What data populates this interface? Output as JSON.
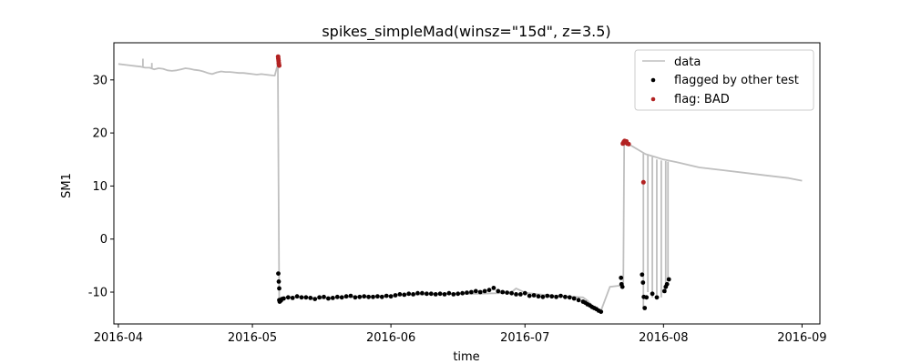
{
  "chart_data": {
    "type": "line",
    "title": "spikes_simpleMad(winsz=\"15d\", z=3.5)",
    "xlabel": "time",
    "ylabel": "SM1",
    "x_ticks": [
      "2016-04",
      "2016-05",
      "2016-06",
      "2016-07",
      "2016-08",
      "2016-09"
    ],
    "x_tick_days": [
      0,
      30,
      61,
      91,
      122,
      153
    ],
    "xlim_days": [
      -1,
      157
    ],
    "x_origin": "2016-04-01",
    "y_ticks": [
      -10,
      0,
      10,
      20,
      30
    ],
    "ylim": [
      -16,
      37
    ],
    "grid": false,
    "legend_position": "top-right",
    "legend": {
      "data": "data",
      "other": "flagged by other test",
      "bad": "flag: BAD"
    },
    "colors": {
      "data": "#bfbfbf",
      "other": "#000000",
      "bad": "#b22222"
    },
    "series": [
      {
        "name": "data",
        "type": "line",
        "x_days": [
          0,
          2,
          4,
          5,
          6,
          7,
          8,
          9,
          10,
          11,
          12,
          13,
          14,
          15,
          16,
          17,
          18,
          19,
          20,
          21,
          22,
          23,
          24,
          25,
          26,
          27,
          28,
          29,
          30,
          31,
          32,
          33,
          34,
          35,
          35.7,
          36,
          36.3,
          38,
          40,
          45,
          50,
          55,
          60,
          62,
          65,
          70,
          75,
          80,
          85,
          88,
          89,
          91,
          95,
          100,
          104,
          105,
          106,
          107,
          108,
          110,
          112,
          113,
          113.2,
          115,
          117,
          118,
          120,
          122,
          125,
          130,
          135,
          140,
          145,
          150,
          153
        ],
        "values": [
          33,
          32.8,
          32.6,
          32.5,
          32.3,
          32.3,
          32.0,
          32.2,
          32.1,
          31.8,
          31.7,
          31.8,
          32.0,
          32.2,
          32.1,
          31.9,
          31.8,
          31.6,
          31.3,
          31.1,
          31.4,
          31.6,
          31.5,
          31.5,
          31.4,
          31.3,
          31.3,
          31.2,
          31.1,
          31.0,
          31.1,
          31.0,
          30.9,
          30.8,
          33,
          -11.5,
          -11.2,
          -11.0,
          -10.9,
          -11.2,
          -11.0,
          -10.8,
          -10.7,
          -10.6,
          -10.5,
          -10.4,
          -10.3,
          -10.3,
          -10.2,
          -10.0,
          -9.3,
          -10.1,
          -10.5,
          -10.8,
          -11.0,
          -11.6,
          -12.5,
          -13.0,
          -13.5,
          -9.0,
          -8.8,
          -8.5,
          18.5,
          17.5,
          16.5,
          16.0,
          15.5,
          15.0,
          14.5,
          13.5,
          13.0,
          12.5,
          12.0,
          11.5,
          11.0
        ]
      },
      {
        "name": "data-small-spikes",
        "type": "spikes",
        "x_days": [
          5.5,
          7.5
        ],
        "from": [
          32.4,
          32.2
        ],
        "to": [
          34.0,
          33.2
        ]
      },
      {
        "name": "data-drop-spikes",
        "type": "spikes",
        "x_days": [
          117.5,
          118.5,
          119.5,
          120.5,
          121.5,
          122.5,
          123.0
        ],
        "from": [
          16.2,
          15.8,
          15.5,
          15.0,
          14.8,
          14.7,
          14.6
        ],
        "to": [
          -13.0,
          -10.0,
          -11.0,
          -10.5,
          -11.0,
          -10.2,
          -7.8
        ]
      },
      {
        "name": "flagged by other test",
        "type": "scatter",
        "x_days": [
          35.8,
          35.9,
          36.0,
          36.0,
          36.1,
          36.2,
          36.4,
          36.6,
          37,
          38,
          39,
          40,
          41,
          42,
          43,
          44,
          45,
          46,
          47,
          48,
          49,
          50,
          51,
          52,
          53,
          54,
          55,
          56,
          57,
          58,
          59,
          60,
          61,
          62,
          63,
          64,
          65,
          66,
          67,
          68,
          69,
          70,
          71,
          72,
          73,
          74,
          75,
          76,
          77,
          78,
          79,
          80,
          81,
          82,
          83,
          84,
          85,
          86,
          87,
          88,
          89,
          90,
          91,
          92,
          93,
          94,
          95,
          96,
          97,
          98,
          99,
          100,
          101,
          102,
          103,
          104,
          104.5,
          105,
          105.5,
          106,
          106.5,
          107,
          107.5,
          108,
          112.5,
          112.6,
          112.8,
          117.2,
          117.4,
          117.6,
          117.8,
          118.2,
          119.5,
          120.5,
          122.2,
          122.5,
          122.8,
          123.2
        ],
        "values": [
          -6.5,
          -8.0,
          -9.3,
          -11.5,
          -11.8,
          -11.5,
          -11.6,
          -11.3,
          -11.2,
          -11.0,
          -11.1,
          -10.8,
          -11.0,
          -11.0,
          -11.1,
          -11.3,
          -11.0,
          -10.9,
          -11.2,
          -11.1,
          -10.9,
          -11.0,
          -10.8,
          -10.7,
          -11.0,
          -10.9,
          -10.8,
          -10.9,
          -10.9,
          -10.8,
          -10.9,
          -10.7,
          -10.8,
          -10.6,
          -10.4,
          -10.5,
          -10.3,
          -10.4,
          -10.2,
          -10.2,
          -10.3,
          -10.3,
          -10.4,
          -10.3,
          -10.4,
          -10.2,
          -10.4,
          -10.3,
          -10.2,
          -10.1,
          -10.0,
          -9.8,
          -10.0,
          -9.8,
          -9.6,
          -9.2,
          -9.8,
          -10.0,
          -10.1,
          -10.2,
          -10.4,
          -10.4,
          -10.2,
          -10.7,
          -10.6,
          -10.8,
          -10.9,
          -10.7,
          -10.8,
          -10.9,
          -10.7,
          -10.9,
          -11.0,
          -11.2,
          -11.5,
          -11.8,
          -12.0,
          -12.3,
          -12.5,
          -12.8,
          -13.0,
          -13.2,
          -13.5,
          -13.7,
          -7.3,
          -8.5,
          -9.0,
          -6.7,
          -8.2,
          -10.9,
          -13.0,
          -11.0,
          -10.3,
          -11.0,
          -9.8,
          -9.0,
          -8.5,
          -7.6
        ]
      },
      {
        "name": "flag: BAD",
        "type": "scatter",
        "x_days": [
          35.75,
          35.8,
          35.85,
          35.9,
          35.95,
          36.0,
          112.9,
          113.1,
          113.3,
          113.5,
          113.7,
          113.9,
          114.2,
          117.5
        ],
        "values": [
          34.4,
          34.0,
          33.6,
          33.2,
          32.9,
          32.7,
          18.0,
          18.3,
          18.5,
          18.2,
          18.4,
          18.0,
          17.9,
          10.7
        ]
      }
    ]
  }
}
